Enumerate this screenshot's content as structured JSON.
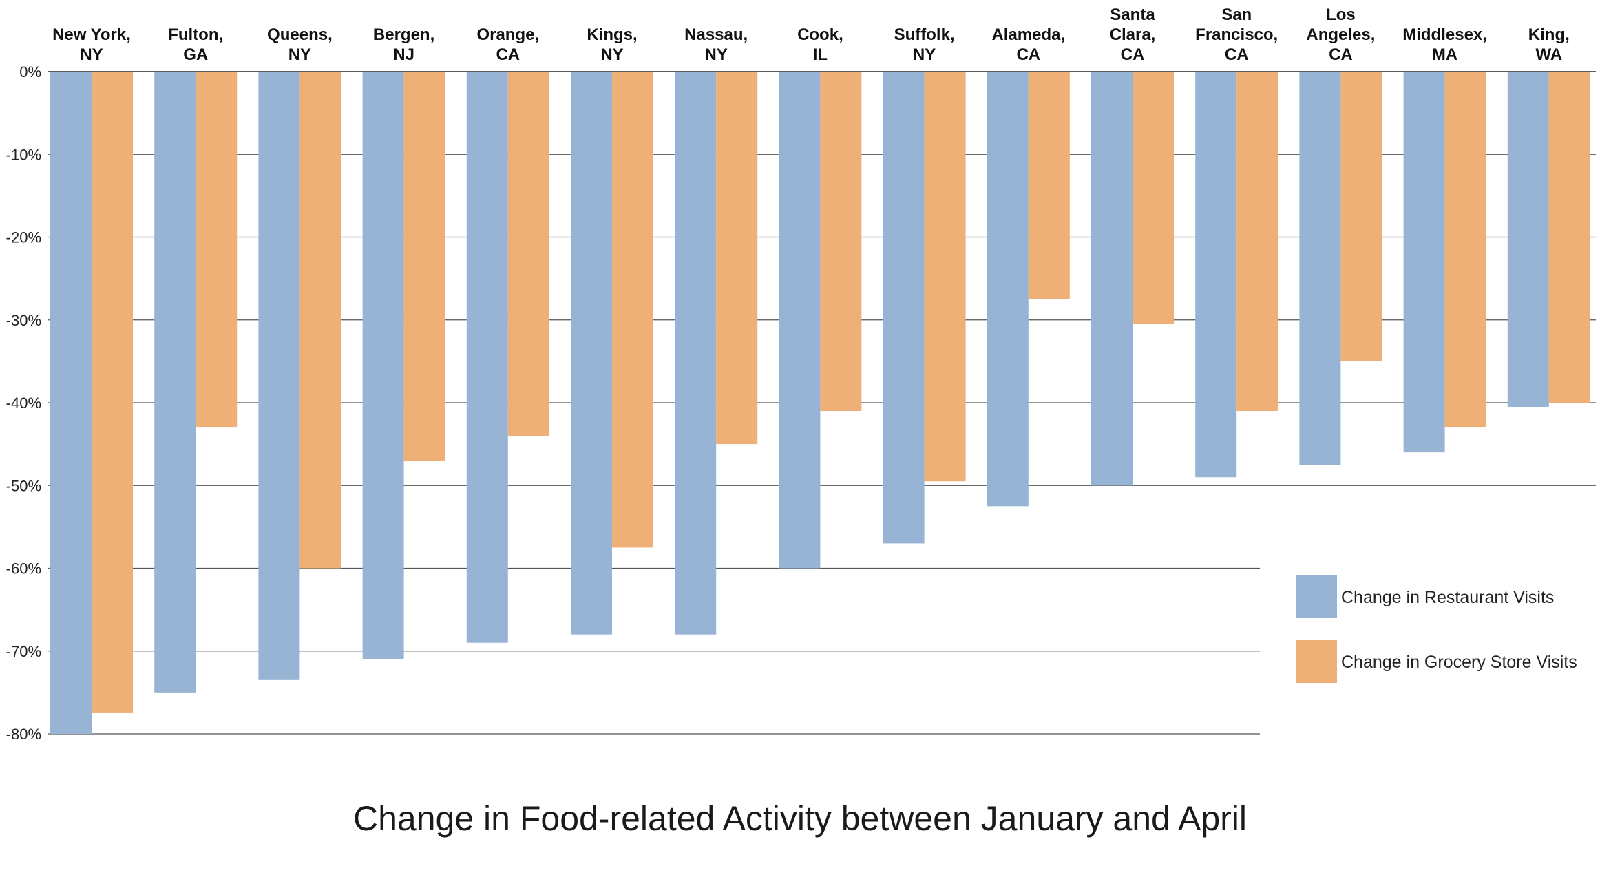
{
  "chart_data": {
    "type": "bar",
    "title": "Change in Food-related Activity between January and April",
    "xlabel": "",
    "ylabel": "",
    "ylim": [
      -80,
      0
    ],
    "y_ticks": [
      {
        "value": 0,
        "label": "0%"
      },
      {
        "value": -10,
        "label": "-10%"
      },
      {
        "value": -20,
        "label": "-20%"
      },
      {
        "value": -30,
        "label": "-30%"
      },
      {
        "value": -40,
        "label": "-40%"
      },
      {
        "value": -50,
        "label": "-50%"
      },
      {
        "value": -60,
        "label": "-60%"
      },
      {
        "value": -70,
        "label": "-70%"
      },
      {
        "value": -80,
        "label": "-80%"
      }
    ],
    "categories": [
      "New York, NY",
      "Fulton, GA",
      "Queens, NY",
      "Bergen, NJ",
      "Orange, CA",
      "Kings, NY",
      "Nassau, NY",
      "Cook, IL",
      "Suffolk, NY",
      "Alameda, CA",
      "Santa Clara, CA",
      "San Francisco, CA",
      "Los Angeles, CA",
      "Middlesex, MA",
      "King, WA"
    ],
    "category_lines": [
      [
        "New York,",
        "NY"
      ],
      [
        "Fulton,",
        "GA"
      ],
      [
        "Queens,",
        "NY"
      ],
      [
        "Bergen,",
        "NJ"
      ],
      [
        "Orange,",
        "CA"
      ],
      [
        "Kings,",
        "NY"
      ],
      [
        "Nassau,",
        "NY"
      ],
      [
        "Cook,",
        "IL"
      ],
      [
        "Suffolk,",
        "NY"
      ],
      [
        "Alameda,",
        "CA"
      ],
      [
        "Santa",
        "Clara,",
        "CA"
      ],
      [
        "San",
        "Francisco,",
        "CA"
      ],
      [
        "Los",
        "Angeles,",
        "CA"
      ],
      [
        "Middlesex,",
        "MA"
      ],
      [
        "King,",
        "WA"
      ]
    ],
    "series": [
      {
        "name": "Change in Restaurant Visits",
        "color": "#98b4d4",
        "values": [
          -80,
          -75,
          -73.5,
          -71,
          -69,
          -68,
          -68,
          -60,
          -57,
          -52.5,
          -50,
          -49,
          -47.5,
          -46,
          -40.5
        ]
      },
      {
        "name": "Change in Grocery Store Visits",
        "color": "#eeb077",
        "values": [
          -77.5,
          -43,
          -60,
          -47,
          -44,
          -57.5,
          -45,
          -41,
          -49.5,
          -27.5,
          -30.5,
          -41,
          -35,
          -43,
          -40
        ]
      }
    ],
    "grid": true,
    "legend_position": "bottom-right"
  }
}
